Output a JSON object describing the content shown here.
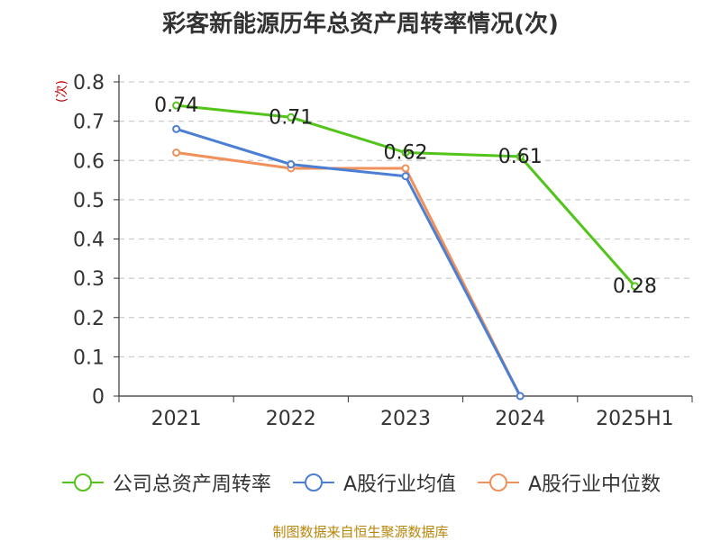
{
  "chart_data": {
    "type": "line",
    "title": "彩客新能源历年总资产周转率情况(次)",
    "ylabel": "(次)",
    "xlabel": "",
    "categories": [
      "2021",
      "2022",
      "2023",
      "2024",
      "2025H1"
    ],
    "ylim": [
      0,
      0.8
    ],
    "yticks": [
      "0",
      "0.1",
      "0.2",
      "0.3",
      "0.4",
      "0.5",
      "0.6",
      "0.7",
      "0.8"
    ],
    "grid": true,
    "series": [
      {
        "name": "公司总资产周转率",
        "color": "#52c41a",
        "values": [
          0.74,
          0.71,
          0.62,
          0.61,
          0.28
        ],
        "labels": [
          "0.74",
          "0.71",
          "0.62",
          "0.61",
          "0.28"
        ]
      },
      {
        "name": "A股行业均值",
        "color": "#4a7fd4",
        "values": [
          0.68,
          0.59,
          0.56,
          0.0,
          null
        ]
      },
      {
        "name": "A股行业中位数",
        "color": "#f0905a",
        "values": [
          0.62,
          0.58,
          0.58,
          0.0,
          null
        ]
      }
    ],
    "legend_position": "bottom",
    "source": "制图数据来自恒生聚源数据库"
  }
}
